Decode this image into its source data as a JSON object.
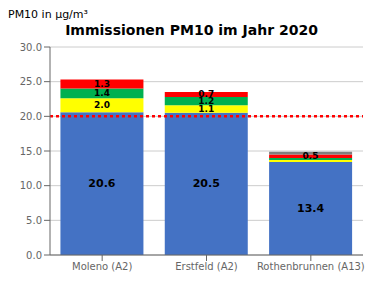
{
  "chart_data": {
    "type": "bar",
    "stacked": true,
    "title": "Immissionen PM10 im Jahr 2020",
    "ylabel": "PM10 in μg/m³",
    "categories": [
      "Moleno (A2)",
      "Erstfeld (A2)",
      "Rothenbrunnen (A13)"
    ],
    "series": [
      {
        "color": "#4472C4",
        "values": [
          20.6,
          20.5,
          13.4
        ],
        "value_labels": [
          "20.6",
          "20.5",
          "13.4"
        ]
      },
      {
        "color": "#FFFF00",
        "values": [
          2.0,
          1.1,
          0.3
        ],
        "value_labels": [
          "2.0",
          "1.1",
          null
        ]
      },
      {
        "color": "#00B050",
        "values": [
          1.4,
          1.2,
          0.3
        ],
        "value_labels": [
          "1.4",
          "1.2",
          null
        ]
      },
      {
        "color": "#FF0000",
        "values": [
          1.3,
          0.7,
          0.5
        ],
        "value_labels": [
          "1.3",
          "0.7",
          "0.5"
        ]
      },
      {
        "color": "#7F7F7F",
        "values": [
          0.0,
          0.0,
          0.4
        ]
      }
    ],
    "data_labels": true,
    "reference_line": {
      "y": 20.0,
      "color": "#FF0000",
      "line_style": "dotted"
    },
    "ylim": [
      0,
      30
    ],
    "yticks": [
      {
        "value": 0,
        "label": "0.0"
      },
      {
        "value": 5,
        "label": "5.0"
      },
      {
        "value": 10,
        "label": "10.0"
      },
      {
        "value": 15,
        "label": "15.0"
      },
      {
        "value": 20,
        "label": "20.0"
      },
      {
        "value": 25,
        "label": "25.0"
      },
      {
        "value": 30,
        "label": "30.0"
      }
    ],
    "grid": true
  }
}
